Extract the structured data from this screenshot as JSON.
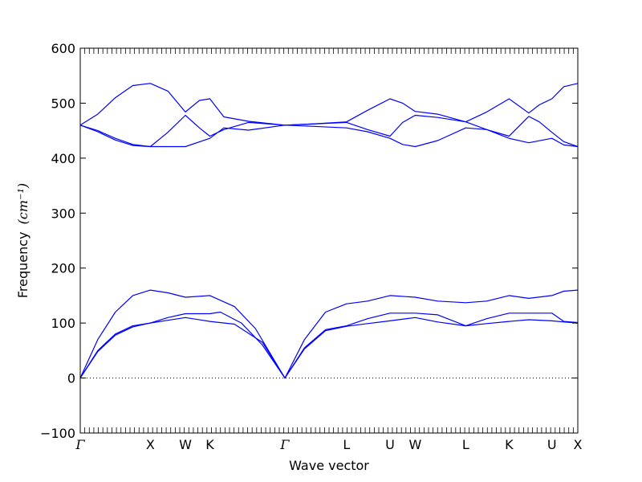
{
  "chart_data": {
    "type": "line",
    "title": "",
    "xlabel": "Wave vector",
    "ylabel": "Frequency",
    "ylabel_unit": "(cm⁻¹)",
    "ylim": [
      -100,
      600
    ],
    "yticks": [
      -100,
      0,
      100,
      200,
      300,
      400,
      500,
      600
    ],
    "x_high_symmetry_points": [
      {
        "label": "Γ",
        "x": 0
      },
      {
        "label": "X",
        "x": 1
      },
      {
        "label": "W",
        "x": 1.5
      },
      {
        "label": "K",
        "x": 1.85
      },
      {
        "label": "Γ",
        "x": 2.92
      },
      {
        "label": "L",
        "x": 3.8
      },
      {
        "label": "U",
        "x": 4.42
      },
      {
        "label": "W",
        "x": 4.78
      },
      {
        "label": "L",
        "x": 5.5
      },
      {
        "label": "K",
        "x": 6.12
      },
      {
        "label": "U",
        "x": 6.73
      },
      {
        "label": "X",
        "x": 7.1
      }
    ],
    "zero_line": {
      "value": 0,
      "style": "dotted"
    },
    "series_color": "#0000ff",
    "series": [
      {
        "points": [
          [
            0,
            0
          ],
          [
            0.25,
            70
          ],
          [
            0.5,
            120
          ],
          [
            0.75,
            150
          ],
          [
            1,
            160
          ],
          [
            1.25,
            155
          ],
          [
            1.5,
            147
          ],
          [
            1.85,
            150
          ],
          [
            2.2,
            130
          ],
          [
            2.5,
            90
          ],
          [
            2.92,
            0
          ],
          [
            3.2,
            70
          ],
          [
            3.5,
            120
          ],
          [
            3.8,
            135
          ],
          [
            4.1,
            140
          ],
          [
            4.42,
            150
          ],
          [
            4.78,
            147
          ],
          [
            5.1,
            140
          ],
          [
            5.5,
            137
          ],
          [
            5.8,
            140
          ],
          [
            6.12,
            150
          ],
          [
            6.4,
            145
          ],
          [
            6.73,
            150
          ],
          [
            6.9,
            158
          ],
          [
            7.1,
            160
          ]
        ]
      },
      {
        "points": [
          [
            0,
            0
          ],
          [
            0.25,
            50
          ],
          [
            0.5,
            80
          ],
          [
            0.75,
            95
          ],
          [
            1,
            100
          ],
          [
            1.25,
            110
          ],
          [
            1.5,
            117
          ],
          [
            1.85,
            117
          ],
          [
            2.0,
            120
          ],
          [
            2.3,
            100
          ],
          [
            2.6,
            60
          ],
          [
            2.92,
            0
          ],
          [
            3.2,
            55
          ],
          [
            3.5,
            88
          ],
          [
            3.8,
            95
          ],
          [
            4.1,
            108
          ],
          [
            4.42,
            118
          ],
          [
            4.78,
            118
          ],
          [
            5.1,
            115
          ],
          [
            5.5,
            95
          ],
          [
            5.8,
            108
          ],
          [
            6.12,
            118
          ],
          [
            6.4,
            118
          ],
          [
            6.73,
            118
          ],
          [
            6.9,
            103
          ],
          [
            7.1,
            101
          ]
        ]
      },
      {
        "points": [
          [
            0,
            0
          ],
          [
            0.25,
            48
          ],
          [
            0.5,
            78
          ],
          [
            0.75,
            93
          ],
          [
            1,
            100
          ],
          [
            1.25,
            105
          ],
          [
            1.5,
            110
          ],
          [
            1.85,
            103
          ],
          [
            2.2,
            98
          ],
          [
            2.6,
            65
          ],
          [
            2.92,
            0
          ],
          [
            3.2,
            53
          ],
          [
            3.5,
            86
          ],
          [
            3.8,
            94
          ],
          [
            4.1,
            99
          ],
          [
            4.42,
            104
          ],
          [
            4.78,
            110
          ],
          [
            5.1,
            102
          ],
          [
            5.5,
            95
          ],
          [
            5.8,
            99
          ],
          [
            6.12,
            103
          ],
          [
            6.4,
            106
          ],
          [
            6.73,
            104
          ],
          [
            6.9,
            102
          ],
          [
            7.1,
            100
          ]
        ]
      },
      {
        "points": [
          [
            0,
            460
          ],
          [
            0.25,
            480
          ],
          [
            0.5,
            510
          ],
          [
            0.75,
            532
          ],
          [
            1,
            536
          ],
          [
            1.25,
            522
          ],
          [
            1.5,
            484
          ],
          [
            1.7,
            505
          ],
          [
            1.85,
            508
          ],
          [
            2.05,
            475
          ],
          [
            2.4,
            467
          ],
          [
            2.92,
            460
          ],
          [
            3.3,
            462
          ],
          [
            3.8,
            466
          ],
          [
            4.1,
            487
          ],
          [
            4.42,
            508
          ],
          [
            4.6,
            500
          ],
          [
            4.78,
            485
          ],
          [
            5.1,
            480
          ],
          [
            5.5,
            466
          ],
          [
            5.8,
            484
          ],
          [
            6.12,
            508
          ],
          [
            6.4,
            482
          ],
          [
            6.55,
            497
          ],
          [
            6.73,
            508
          ],
          [
            6.9,
            530
          ],
          [
            7.1,
            536
          ]
        ]
      },
      {
        "points": [
          [
            0,
            460
          ],
          [
            0.25,
            448
          ],
          [
            0.5,
            433
          ],
          [
            0.75,
            423
          ],
          [
            1,
            421
          ],
          [
            1.25,
            447
          ],
          [
            1.5,
            478
          ],
          [
            1.7,
            455
          ],
          [
            1.85,
            440
          ],
          [
            2.05,
            452
          ],
          [
            2.4,
            465
          ],
          [
            2.92,
            460
          ],
          [
            3.3,
            462
          ],
          [
            3.8,
            465
          ],
          [
            4.1,
            452
          ],
          [
            4.42,
            440
          ],
          [
            4.6,
            465
          ],
          [
            4.78,
            478
          ],
          [
            5.1,
            474
          ],
          [
            5.5,
            466
          ],
          [
            5.8,
            452
          ],
          [
            6.12,
            440
          ],
          [
            6.4,
            476
          ],
          [
            6.55,
            466
          ],
          [
            6.73,
            447
          ],
          [
            6.9,
            430
          ],
          [
            7.1,
            421
          ]
        ]
      },
      {
        "points": [
          [
            0,
            460
          ],
          [
            0.25,
            450
          ],
          [
            0.5,
            436
          ],
          [
            0.75,
            425
          ],
          [
            1,
            421
          ],
          [
            1.25,
            421
          ],
          [
            1.5,
            421
          ],
          [
            1.85,
            436
          ],
          [
            2.05,
            455
          ],
          [
            2.4,
            451
          ],
          [
            2.92,
            460
          ],
          [
            3.3,
            458
          ],
          [
            3.8,
            455
          ],
          [
            4.1,
            448
          ],
          [
            4.42,
            436
          ],
          [
            4.6,
            425
          ],
          [
            4.78,
            421
          ],
          [
            5.1,
            432
          ],
          [
            5.5,
            455
          ],
          [
            5.8,
            452
          ],
          [
            6.12,
            436
          ],
          [
            6.4,
            428
          ],
          [
            6.73,
            436
          ],
          [
            6.9,
            424
          ],
          [
            7.1,
            421
          ]
        ]
      }
    ]
  }
}
